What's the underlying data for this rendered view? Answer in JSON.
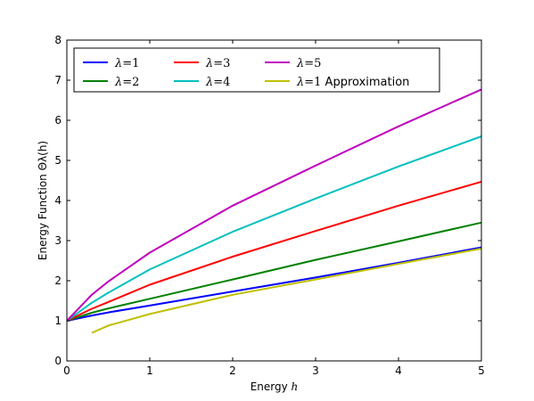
{
  "chart_data": {
    "type": "line",
    "title": "",
    "xlabel": "Energy h",
    "ylabel": "Energy Function Θλ(h)",
    "xlim": [
      0,
      5
    ],
    "ylim": [
      0,
      8
    ],
    "x_ticks": [
      "0",
      "1",
      "2",
      "3",
      "4",
      "5"
    ],
    "y_ticks": [
      "0",
      "1",
      "2",
      "3",
      "4",
      "5",
      "6",
      "7",
      "8"
    ],
    "grid": false,
    "legend": "top-left",
    "series": [
      {
        "name": "λ=1",
        "color": "#0000ff",
        "x": [
          0,
          0.3,
          0.5,
          1,
          2,
          3,
          4,
          5
        ],
        "y": [
          1.0,
          1.13,
          1.21,
          1.38,
          1.73,
          2.08,
          2.45,
          2.83
        ]
      },
      {
        "name": "λ=2",
        "color": "#008000",
        "x": [
          0,
          0.3,
          0.5,
          1,
          2,
          3,
          4,
          5
        ],
        "y": [
          1.0,
          1.2,
          1.31,
          1.55,
          2.03,
          2.52,
          2.98,
          3.45
        ]
      },
      {
        "name": "λ=3",
        "color": "#ff0000",
        "x": [
          0,
          0.3,
          0.5,
          1,
          2,
          3,
          4,
          5
        ],
        "y": [
          1.0,
          1.3,
          1.47,
          1.9,
          2.6,
          3.24,
          3.87,
          4.47
        ]
      },
      {
        "name": "λ=4",
        "color": "#00bfbf",
        "x": [
          0,
          0.3,
          0.5,
          1,
          2,
          3,
          4,
          5
        ],
        "y": [
          1.0,
          1.45,
          1.7,
          2.28,
          3.22,
          4.05,
          4.85,
          5.6
        ]
      },
      {
        "name": "λ=5",
        "color": "#bf00bf",
        "x": [
          0,
          0.3,
          0.5,
          1,
          2,
          3,
          4,
          5
        ],
        "y": [
          1.0,
          1.65,
          1.98,
          2.7,
          3.87,
          4.87,
          5.85,
          6.77
        ]
      },
      {
        "name": "λ=1 Approximation",
        "color": "#bfbf00",
        "x": [
          0.3,
          0.5,
          1,
          2,
          3,
          4,
          5
        ],
        "y": [
          0.7,
          0.88,
          1.17,
          1.65,
          2.03,
          2.42,
          2.8
        ]
      }
    ]
  }
}
